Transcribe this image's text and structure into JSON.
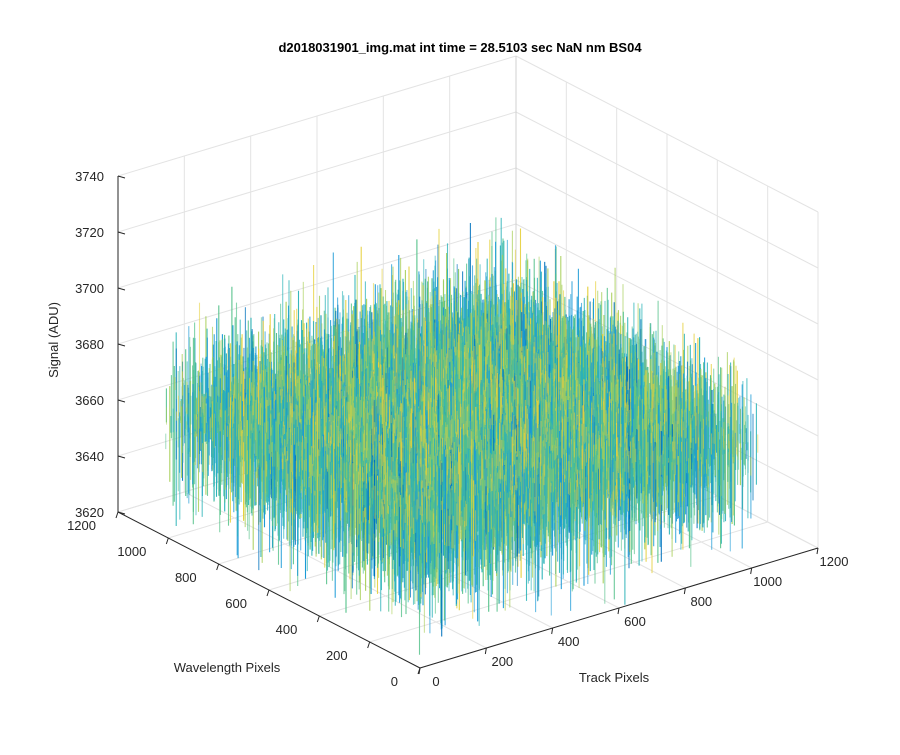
{
  "chart_data": {
    "type": "surface",
    "title": "d2018031901_img.mat int time = 28.5103 sec  NaN nm BS04",
    "xlabel": "Track Pixels",
    "ylabel": "Wavelength Pixels",
    "zlabel": "Signal (ADU)",
    "xlim": [
      0,
      1200
    ],
    "ylim": [
      0,
      1200
    ],
    "zlim": [
      3620,
      3740
    ],
    "x_ticks": [
      "0",
      "200",
      "400",
      "600",
      "800",
      "1000",
      "1200"
    ],
    "y_ticks": [
      "0",
      "200",
      "400",
      "600",
      "800",
      "1000",
      "1200"
    ],
    "z_ticks": [
      "3620",
      "3640",
      "3660",
      "3680",
      "3700",
      "3720",
      "3740"
    ],
    "grid": true,
    "data_extent": {
      "x": [
        1,
        1024
      ],
      "y": [
        1,
        1024
      ]
    },
    "signal_mean": 3662,
    "signal_noise_range": [
      3628,
      3712
    ],
    "colormap": [
      "#0072bd",
      "#1a9ad6",
      "#2bb3b8",
      "#55c28a",
      "#a9cf5a",
      "#e6d03c"
    ]
  }
}
